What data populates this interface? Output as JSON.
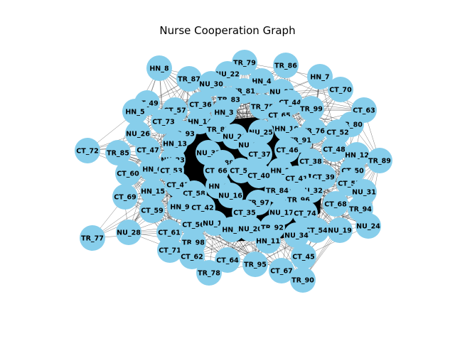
{
  "title": "Nurse Cooperation Graph",
  "colors": {
    "node": "#87ceeb",
    "edge": "#000000",
    "background": "#ffffff"
  },
  "nodes": [
    "HN_8",
    "TR_79",
    "TR_86",
    "TR_87",
    "NU_22",
    "HN_4",
    "HN_7",
    "NU_30",
    "TR_81",
    "NU_27",
    "CT_70",
    "CT_49",
    "CT_36",
    "TR_83",
    "CT_44",
    "HN_5",
    "CT_57",
    "TR_75",
    "CT_65",
    "TR_99",
    "CT_63",
    "HN_3",
    "CT_73",
    "HN_14",
    "NU_25",
    "HN_10",
    "TR_80",
    "TR_82",
    "NU_29",
    "TR_76",
    "CT_52",
    "NU_26",
    "TR_93",
    "NU_21",
    "TR_91",
    "CT_72",
    "HN_13",
    "CT_37",
    "CT_46",
    "CT_48",
    "HN_12",
    "TR_85",
    "CT_47",
    "NU_33",
    "TR_88",
    "CT_38",
    "TR_89",
    "NU_23",
    "HN_6",
    "CT_53",
    "CT_66",
    "CT_51",
    "HN_2",
    "CT_50",
    "CT_60",
    "CT_40",
    "CT_41",
    "CT_39",
    "CT_43",
    "HN_0",
    "TR_84",
    "NU_32",
    "CT_55",
    "CT_69",
    "HN_15",
    "CT_58",
    "NU_16",
    "TR_97",
    "TR_96",
    "NU_31",
    "HN_9",
    "CT_42",
    "CT_35",
    "CT_68",
    "TR_94",
    "CT_59",
    "NU_17",
    "CT_74",
    "NU_24",
    "NU_28",
    "CT_56",
    "NU_18",
    "HN_1",
    "NU_20",
    "TR_92",
    "CT_54",
    "NU_19",
    "TR_77",
    "CT_61",
    "NU_34",
    "TR_98",
    "HN_11",
    "CT_71",
    "CT_62",
    "CT_64",
    "TR_95",
    "CT_45",
    "CT_67",
    "TR_78",
    "TR_90"
  ]
}
